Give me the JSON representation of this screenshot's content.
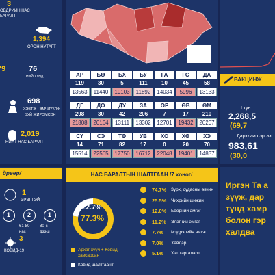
{
  "left_panel": {
    "daily_deaths": {
      "value": "3",
      "label": [
        "ӨВДРИЙН НАС",
        "БАРАЛТ"
      ]
    },
    "local": {
      "value": "1,394",
      "label": "ОРОН НУТАГТ"
    },
    "severe": {
      "values": [
        "79",
        "76"
      ],
      "label": "НИЙ ХҮНД"
    },
    "pregnant": {
      "value": "698",
      "label": [
        "ХЭВТЭН ЭМЧЛҮҮЛЖ",
        "БУЙ ЖИРЭМСЭН"
      ]
    },
    "total_deaths": {
      "value": "2,019",
      "label": "НИЙТ НАС БАРАЛТ"
    }
  },
  "province_table": {
    "blocks": [
      {
        "codes": [
          "АР",
          "БӨ",
          "БХ",
          "БУ",
          "ГА",
          "ГС",
          "ДА"
        ],
        "cases": [
          119,
          30,
          5,
          111,
          10,
          45,
          58
        ],
        "population": [
          13563,
          11440,
          19103,
          11892,
          14034,
          5996,
          13133
        ],
        "shade": [
          "#ffffff",
          "#ffffff",
          "#e79a9a",
          "#f3d3d3",
          "#ffffff",
          "#e79a9a",
          "#ffffff"
        ]
      },
      {
        "codes": [
          "ДГ",
          "ДО",
          "ДУ",
          "ЗА",
          "ОР",
          "ӨВ",
          "ӨМ"
        ],
        "cases": [
          298,
          30,
          42,
          206,
          7,
          17,
          210
        ],
        "population": [
          21808,
          20164,
          13111,
          13302,
          12701,
          19432,
          20207
        ],
        "shade": [
          "#e79a9a",
          "#e79a9a",
          "#ffffff",
          "#ffffff",
          "#ffffff",
          "#e79a9a",
          "#ffffff"
        ]
      },
      {
        "codes": [
          "СҮ",
          "СЭ",
          "ТӨ",
          "УВ",
          "ХО",
          "ХӨ",
          "ХЭ"
        ],
        "cases": [
          14,
          71,
          82,
          17,
          0,
          20,
          70
        ],
        "population": [
          15514,
          22565,
          17750,
          16712,
          22048,
          19401,
          14837
        ],
        "shade": [
          "#ffffff",
          "#e79a9a",
          "#e79a9a",
          "#e79a9a",
          "#e79a9a",
          "#e79a9a",
          "#ffffff"
        ]
      }
    ]
  },
  "vaccination": {
    "title": "ВАКЦИНЖ",
    "dose1_label": "I тун:",
    "dose1_value": "2,268,5",
    "dose1_pct": "(69,7",
    "booster_label": "Дархлаа сэргээ",
    "booster_value": "983,61",
    "booster_pct": "(30,0"
  },
  "age_breakdown": {
    "title": "дрөөр/",
    "male": {
      "value": "1",
      "label": "ЭРЭГТЭЙ"
    },
    "age_groups": [
      {
        "value": "1"
      },
      {
        "value": "2",
        "label": [
          "61-80",
          "нас"
        ]
      },
      {
        "value": "1",
        "label": [
          "80-с",
          "дээш"
        ]
      }
    ],
    "covid": {
      "value": "3",
      "label": "КОВИД-19"
    }
  },
  "death_causes": {
    "title": "НАС БАРАЛТЫН ШАЛТГААН /7 хоног/",
    "donut": {
      "values": [
        22.7,
        77.3
      ],
      "value_labels": [
        "22.7%",
        "77.3%"
      ],
      "colors": [
        "#ffffff",
        "#f5c518"
      ]
    },
    "legend": [
      {
        "label": [
          "Архаг хууч + Ковид",
          "хавсарсан"
        ],
        "color": "#f5c518"
      },
      {
        "label": [
          "Ковид шалтгаант"
        ],
        "color": "#ffffff"
      }
    ],
    "causes": [
      {
        "percent": "74.7%",
        "label": "Зүрх, судасны өвчин"
      },
      {
        "percent": "25.5%",
        "label": "Чихрийн шижин"
      },
      {
        "percent": "12.0%",
        "label": "Бөөрний эмгэг"
      },
      {
        "percent": "11.2%",
        "label": "Элэгний эмгэг"
      },
      {
        "percent": "7.7%",
        "label": "Мэдрэлийн эмгэг"
      },
      {
        "percent": "7.0%",
        "label": "Хавдар"
      },
      {
        "percent": "5.1%",
        "label": "Хэт таргалалт"
      }
    ]
  },
  "message": {
    "lines": [
      "Иргэн Та а",
      "зүүж, дар",
      "түнд хамр",
      "болон гэр",
      "халдва"
    ]
  }
}
